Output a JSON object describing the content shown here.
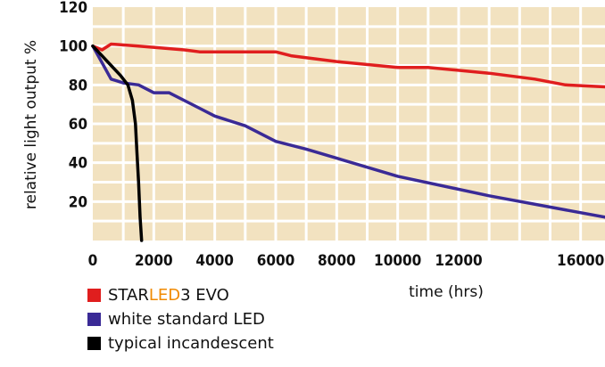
{
  "chart_data": {
    "type": "line",
    "title": "",
    "xlabel": "time (hrs)",
    "ylabel": "relative light output %",
    "xlim": [
      0,
      16800
    ],
    "ylim": [
      0,
      120
    ],
    "x_ticks": [
      0,
      2000,
      4000,
      6000,
      8000,
      10000,
      12000,
      16000
    ],
    "x_tick_labels": [
      "0",
      "2000",
      "4000",
      "6000",
      "8000",
      "10000",
      "12000",
      "16000"
    ],
    "y_ticks": [
      20,
      40,
      60,
      80,
      100,
      120
    ],
    "y_tick_labels": [
      "20",
      "40",
      "60",
      "80",
      "100",
      "120"
    ],
    "grid": true,
    "background_color": "#f2e2c0",
    "legend_position": "bottom-left",
    "series": [
      {
        "name_parts": [
          "STAR",
          "LED",
          "3 EVO"
        ],
        "color": "#e01e1e",
        "x": [
          0,
          300,
          600,
          1500,
          3000,
          3500,
          4500,
          6000,
          6500,
          8000,
          10000,
          11000,
          13000,
          14500,
          15500,
          16800
        ],
        "y": [
          100,
          98,
          101,
          100,
          98,
          97,
          97,
          97,
          95,
          92,
          89,
          89,
          86,
          83,
          80,
          79
        ]
      },
      {
        "name": "white standard LED",
        "color": "#3a2a96",
        "x": [
          0,
          600,
          1000,
          1500,
          2000,
          2500,
          3500,
          4000,
          5000,
          6000,
          7000,
          10000,
          13000,
          16800
        ],
        "y": [
          100,
          83,
          81,
          80,
          76,
          76,
          68,
          64,
          59,
          51,
          47,
          33,
          23,
          12
        ]
      },
      {
        "name": "typical incandescent",
        "color": "#000000",
        "x": [
          0,
          300,
          600,
          900,
          1150,
          1300,
          1400,
          1450,
          1500,
          1550,
          1600
        ],
        "y": [
          100,
          95,
          90,
          85,
          80,
          72,
          60,
          45,
          30,
          12,
          0
        ]
      }
    ]
  }
}
